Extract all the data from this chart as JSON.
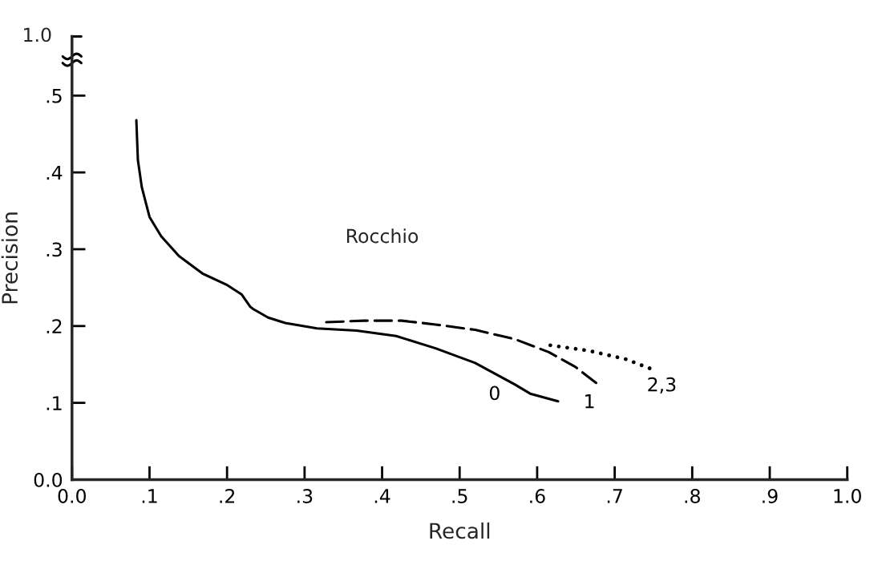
{
  "chart_data": {
    "type": "line",
    "xlabel": "Recall",
    "ylabel": "Precision",
    "xlim": [
      0,
      1
    ],
    "ylim": [
      0,
      0.577
    ],
    "xticks": [
      {
        "value": 0,
        "label": "0.0"
      },
      {
        "value": 0.1,
        "label": ".1"
      },
      {
        "value": 0.2,
        "label": ".2"
      },
      {
        "value": 0.3,
        "label": ".3"
      },
      {
        "value": 0.4,
        "label": ".4"
      },
      {
        "value": 0.5,
        "label": ".5"
      },
      {
        "value": 0.6,
        "label": ".6"
      },
      {
        "value": 0.7,
        "label": ".7"
      },
      {
        "value": 0.8,
        "label": ".8"
      },
      {
        "value": 0.9,
        "label": ".9"
      },
      {
        "value": 1.0,
        "label": "1.0"
      }
    ],
    "yticks": [
      {
        "value": 0,
        "label": "0.0"
      },
      {
        "value": 0.1,
        "label": ".1"
      },
      {
        "value": 0.2,
        "label": ".2"
      },
      {
        "value": 0.3,
        "label": ".3"
      },
      {
        "value": 0.4,
        "label": ".4"
      },
      {
        "value": 0.5,
        "label": ".5"
      }
    ],
    "grid": false,
    "series": [
      {
        "name": "0",
        "color": "#000000",
        "line_style": "solid",
        "x": [
          0.083,
          0.085,
          0.09,
          0.1,
          0.115,
          0.138,
          0.169,
          0.199,
          0.219,
          0.23,
          0.234,
          0.253,
          0.275,
          0.316,
          0.367,
          0.418,
          0.469,
          0.52,
          0.571,
          0.591,
          0.627
        ],
        "values": [
          0.468,
          0.416,
          0.381,
          0.342,
          0.317,
          0.291,
          0.268,
          0.254,
          0.241,
          0.225,
          0.222,
          0.211,
          0.204,
          0.197,
          0.194,
          0.187,
          0.171,
          0.152,
          0.124,
          0.112,
          0.102
        ]
      },
      {
        "name": "1",
        "color": "#000000",
        "line_style": "dashed",
        "x": [
          0.328,
          0.377,
          0.425,
          0.469,
          0.52,
          0.571,
          0.615,
          0.649,
          0.676
        ],
        "values": [
          0.205,
          0.207,
          0.207,
          0.202,
          0.195,
          0.183,
          0.166,
          0.147,
          0.126
        ]
      },
      {
        "name": "2,3",
        "color": "#000000",
        "line_style": "dotted",
        "x": [
          0.617,
          0.666,
          0.714,
          0.745
        ],
        "values": [
          0.175,
          0.168,
          0.157,
          0.145
        ]
      }
    ],
    "annotations": [
      "1.0",
      "Rocchio"
    ]
  }
}
